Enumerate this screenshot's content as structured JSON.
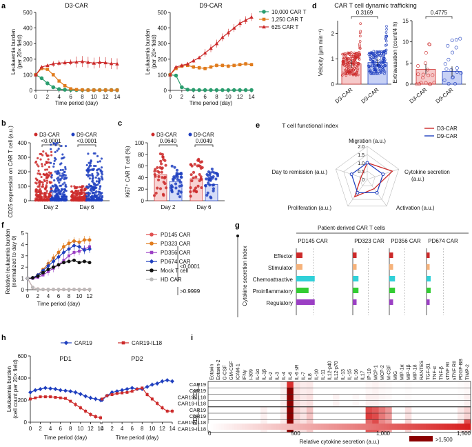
{
  "colors": {
    "green": "#2a9d6e",
    "orange": "#e07b1c",
    "red": "#cc2a2a",
    "blue": "#1f3fbf",
    "purple": "#9b3fc4",
    "black": "#111111",
    "gray": "#bbbbbb",
    "lightred": "#e05050",
    "cyan": "#30d0d8",
    "lime": "#33cc33",
    "peach": "#f6b27a"
  },
  "panels": {
    "a": "a",
    "b": "b",
    "c": "c",
    "d": "d",
    "e": "e",
    "f": "f",
    "g": "g",
    "h": "h",
    "i": "i"
  },
  "chart_data": [
    {
      "id": "a1",
      "type": "line",
      "title": "D3-CAR",
      "xlabel": "Time period (day)",
      "ylabel": "Leukaemia burden (per 20× field)",
      "x": [
        0,
        1,
        2,
        3,
        4,
        5,
        6,
        7,
        8,
        9,
        10,
        11,
        12,
        13,
        14
      ],
      "xticks": [
        "0",
        "2",
        "4",
        "6",
        "8",
        "10",
        "12",
        "14"
      ],
      "ylim": [
        0,
        500
      ],
      "yticks": [
        "0",
        "100",
        "200",
        "300",
        "400",
        "500"
      ],
      "series": [
        {
          "name": "10,000 CAR T",
          "values": [
            100,
            78,
            45,
            20,
            8,
            4,
            3,
            2,
            2,
            2,
            2,
            2,
            2,
            2,
            2
          ]
        },
        {
          "name": "1,250 CAR T",
          "values": [
            100,
            140,
            135,
            100,
            60,
            30,
            10,
            5,
            3,
            2,
            2,
            2,
            2,
            2,
            2
          ]
        },
        {
          "name": "625 CAR T",
          "values": [
            100,
            150,
            160,
            170,
            175,
            178,
            180,
            182,
            185,
            180,
            175,
            180,
            178,
            172,
            170
          ]
        }
      ]
    },
    {
      "id": "a2",
      "type": "line",
      "title": "D9-CAR",
      "xlabel": "Time period (day)",
      "ylabel": "Leukaemia burden (per 20× field)",
      "x": [
        0,
        1,
        2,
        3,
        4,
        5,
        6,
        7,
        8,
        9,
        10,
        11,
        12,
        13,
        14
      ],
      "xticks": [
        "0",
        "2",
        "4",
        "6",
        "8",
        "10",
        "12",
        "14"
      ],
      "ylim": [
        0,
        500
      ],
      "yticks": [
        "0",
        "100",
        "200",
        "300",
        "400",
        "500"
      ],
      "series": [
        {
          "name": "10,000 CAR T",
          "values": [
            100,
            95,
            20,
            5,
            3,
            2,
            2,
            2,
            2,
            2,
            2,
            2,
            2,
            2,
            2
          ]
        },
        {
          "name": "1,250 CAR T",
          "values": [
            100,
            140,
            155,
            160,
            150,
            145,
            140,
            150,
            160,
            160,
            155,
            160,
            165,
            170,
            165
          ]
        },
        {
          "name": "625 CAR T",
          "values": [
            100,
            150,
            160,
            170,
            190,
            210,
            240,
            270,
            300,
            340,
            370,
            400,
            430,
            450,
            470
          ]
        }
      ],
      "legend": [
        "10,000 CAR T",
        "1,250 CAR T",
        "625 CAR T"
      ]
    },
    {
      "id": "d",
      "type": "bar",
      "title": "CAR T cell dynamic trafficking",
      "categories": [
        "D3-CAR",
        "D9-CAR"
      ],
      "left": {
        "ylabel": "Velocity (μm min⁻¹)",
        "values": [
          0.8,
          0.85
        ],
        "ylim": [
          0,
          2.5
        ],
        "yticks": [
          "0",
          "1",
          "2"
        ],
        "p": "0.3169"
      },
      "right": {
        "ylabel": "Extravasation (count/4 h)",
        "values": [
          3.5,
          3.0
        ],
        "ylim": [
          0,
          15
        ],
        "yticks": [
          "0",
          "5",
          "10",
          "15"
        ],
        "p": "0.4775"
      }
    },
    {
      "id": "b",
      "type": "bar",
      "ylabel": "CD25 expression on CAR T cell (a.u.)",
      "ylim": [
        0,
        400
      ],
      "yticks": [
        "0",
        "100",
        "200",
        "300",
        "400"
      ],
      "categories": [
        "Day 2",
        "Day 6"
      ],
      "legend": [
        "D3-CAR",
        "D9-CAR"
      ],
      "series": [
        {
          "name": "D3-CAR",
          "values": [
            30,
            20
          ]
        },
        {
          "name": "D9-CAR",
          "values": [
            60,
            25
          ]
        }
      ],
      "p": [
        "<0.0001",
        "<0.0001"
      ]
    },
    {
      "id": "c",
      "type": "bar",
      "ylabel": "Ki67⁺ CAR T cell (%)",
      "ylim": [
        0,
        100
      ],
      "yticks": [
        "0",
        "20",
        "40",
        "60",
        "80",
        "100"
      ],
      "categories": [
        "Day 2",
        "Day 6"
      ],
      "legend": [
        "D3-CAR",
        "D9-CAR"
      ],
      "series": [
        {
          "name": "D3-CAR",
          "values": [
            45,
            38
          ]
        },
        {
          "name": "D9-CAR",
          "values": [
            33,
            28
          ]
        }
      ],
      "p": [
        "0.0640",
        "0.0049"
      ]
    },
    {
      "id": "e",
      "type": "radar",
      "title": "T cell functional index",
      "axes": [
        "Migration (a.u.)",
        "Cytokine secretion (a.u.)",
        "Activation (a.u.)",
        "Proliferation (a.u.)",
        "Day to remission (a.u.)"
      ],
      "rticks": [
        "0",
        "0.5",
        "1.0",
        "1.5",
        "2.0"
      ],
      "series": [
        {
          "name": "D3-CAR",
          "values": [
            1.0,
            1.6,
            0.7,
            1.3,
            0.4
          ]
        },
        {
          "name": "D9-CAR",
          "values": [
            1.0,
            1.0,
            1.0,
            1.0,
            1.0
          ]
        }
      ]
    },
    {
      "id": "f",
      "type": "line",
      "xlabel": "Time period (day)",
      "ylabel": "Relative leukaemia burden (normalized to day 0)",
      "x": [
        0,
        1,
        2,
        3,
        4,
        5,
        6,
        7,
        8,
        9,
        10,
        11,
        12
      ],
      "xticks": [
        "0",
        "2",
        "4",
        "6",
        "8",
        "10",
        "12"
      ],
      "ylim": [
        0,
        5
      ],
      "yticks": [
        "0",
        "1",
        "2",
        "3",
        "4",
        "5"
      ],
      "series": [
        {
          "name": "PD145 CAR",
          "values": [
            1,
            0.2,
            0.05,
            0.02,
            0.02,
            0.02,
            0.02,
            0.02,
            0.02,
            0.02,
            0.02,
            0.02,
            0.02
          ]
        },
        {
          "name": "PD323 CAR",
          "values": [
            1,
            1.05,
            1.3,
            1.8,
            2.3,
            2.8,
            3.3,
            3.8,
            4.1,
            4.3,
            4.2,
            4.4,
            4.4
          ]
        },
        {
          "name": "PD356 CAR",
          "values": [
            1,
            1,
            1.1,
            1.3,
            1.6,
            1.9,
            2.2,
            2.6,
            3.0,
            3.3,
            3.4,
            3.6,
            3.8
          ]
        },
        {
          "name": "PD674 CAR",
          "values": [
            1,
            1.05,
            1.3,
            1.7,
            2.1,
            2.5,
            2.9,
            3.3,
            3.6,
            3.9,
            3.8,
            3.5,
            3.6
          ]
        },
        {
          "name": "Mock T cell",
          "values": [
            1,
            1.05,
            1.2,
            1.5,
            1.8,
            2.0,
            2.2,
            2.4,
            2.5,
            2.6,
            2.4,
            2.5,
            2.4
          ]
        },
        {
          "name": "HD CAR",
          "values": [
            1,
            0.2,
            0.05,
            0.02,
            0.02,
            0.02,
            0.02,
            0.02,
            0.02,
            0.02,
            0.02,
            0.02,
            0.02
          ]
        }
      ],
      "p": [
        "<0.0001",
        ">0.9999"
      ]
    },
    {
      "id": "g",
      "type": "hbar",
      "title": "Patient-derived CAR T cells",
      "ylabel": "Cytokine secretion index",
      "groups": [
        "PD145 CAR",
        "PD323 CAR",
        "PD356 CAR",
        "PD674 CAR"
      ],
      "categories": [
        "Effector",
        "Stimulator",
        "Chemoattractive",
        "Proinflammatory",
        "Regulatory"
      ],
      "values": [
        [
          0.3,
          0.3,
          0.9,
          0.6,
          0.9
        ],
        [
          0.2,
          0.2,
          0.3,
          0.3,
          0.2
        ],
        [
          0.2,
          0.2,
          0.3,
          0.3,
          0.2
        ],
        [
          0.15,
          0.15,
          0.2,
          0.2,
          0.15
        ]
      ]
    },
    {
      "id": "h",
      "type": "line",
      "legend": [
        "CAR19",
        "CAR19-IL18"
      ],
      "xlabel": "Time period (day)",
      "ylabel": "Leukaemia burden (cell count per 20× field)",
      "ylim": [
        0,
        600
      ],
      "yticks": [
        "0",
        "200",
        "400",
        "600"
      ],
      "xticks": [
        "0",
        "2",
        "4",
        "6",
        "8",
        "10",
        "12",
        "14"
      ],
      "x": [
        0,
        1,
        2,
        3,
        4,
        5,
        6,
        7,
        8,
        9,
        10,
        11,
        12,
        13,
        14
      ],
      "subplots": [
        {
          "title": "PD1",
          "series": [
            {
              "name": "CAR19",
              "values": [
                270,
                290,
                300,
                310,
                305,
                300,
                290,
                285,
                280,
                270,
                255,
                235,
                220,
                210,
                200
              ]
            },
            {
              "name": "CAR19-IL18",
              "values": [
                210,
                220,
                230,
                230,
                230,
                225,
                220,
                215,
                190,
                160,
                130,
                100,
                70,
                50,
                40
              ]
            }
          ]
        },
        {
          "title": "PD2",
          "series": [
            {
              "name": "CAR19",
              "values": [
                200,
                240,
                270,
                280,
                290,
                300,
                310,
                300,
                300,
                320,
                340,
                350,
                370,
                380,
                370
              ]
            },
            {
              "name": "CAR19-IL18",
              "values": [
                210,
                240,
                250,
                260,
                265,
                270,
                280,
                300,
                310,
                250,
                210,
                170,
                130,
                100,
                100
              ]
            }
          ]
        }
      ]
    },
    {
      "id": "i",
      "type": "heatmap",
      "columns": [
        "Eotaxin",
        "Eotaxin-2",
        "G-CSF",
        "GM-CSF",
        "ICAM-1",
        "IFNγ",
        "I-309",
        "IL-1α",
        "IL-1β",
        "IL-2",
        "IL-3",
        "IL-4",
        "IL-6",
        "IL-6 sR",
        "IL-7",
        "IL8",
        "IL-10",
        "IL-11",
        "IL12-p40",
        "IL12-p70",
        "IL-13",
        "IL-15",
        "IL-16",
        "IL17",
        "IP-10",
        "MCP-1",
        "MCP-2",
        "M-CSF",
        "MIG",
        "MIP-1α",
        "MIP-1β",
        "MIP-1δ",
        "RANTES",
        "TGF-β1",
        "TNF-α",
        "TNF-β",
        "sTNF RI",
        "sTNF RII",
        "PDGF-BB",
        "TIMP-2"
      ],
      "groups": [
        "PD1",
        "PD2"
      ],
      "rows": [
        "CAR19",
        "CAR19",
        "CAR19-IL18",
        "CAR19-IL18",
        "CAR19",
        "CAR19",
        "CAR19-IL18",
        "CAR19-IL18"
      ],
      "xlabel": "Relative cytokine secretion (a.u.)",
      "scale": [
        "0",
        "500",
        "1,000",
        "1,500"
      ],
      "scale_note": ">1,500"
    }
  ]
}
